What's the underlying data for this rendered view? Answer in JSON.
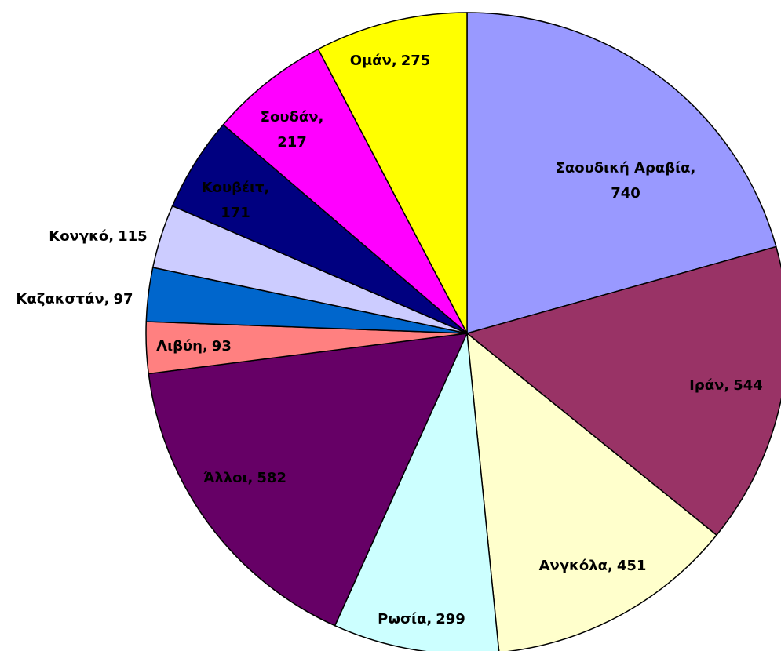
{
  "chart_data": {
    "type": "pie",
    "categories": [
      "Σαουδική Αραβία",
      "Ιράν",
      "Ανγκόλα",
      "Ρωσία",
      "Άλλοι",
      "Λιβύη",
      "Καζακστάν",
      "Κονγκό",
      "Κουβέιτ",
      "Σουδάν",
      "Ομάν"
    ],
    "values": [
      740,
      544,
      451,
      299,
      582,
      93,
      97,
      115,
      171,
      217,
      275
    ],
    "colors": [
      "#9999ff",
      "#993366",
      "#ffffcc",
      "#ccffff",
      "#660066",
      "#ff8080",
      "#0066cc",
      "#ccccff",
      "#000080",
      "#ff00ff",
      "#ffff00"
    ],
    "separator": ","
  }
}
